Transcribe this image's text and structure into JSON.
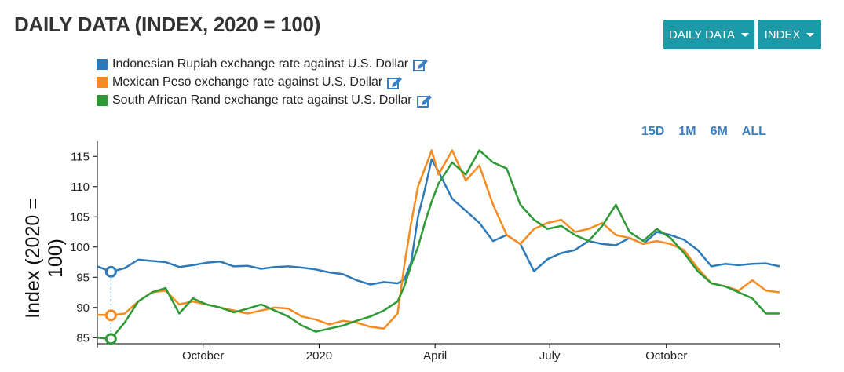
{
  "title": "DAILY DATA (INDEX, 2020 = 100)",
  "buttons": {
    "frequency": "DAILY DATA",
    "transform": "INDEX"
  },
  "range_buttons": [
    "15D",
    "1M",
    "6M",
    "ALL"
  ],
  "colors": {
    "idr": "#2e7ab8",
    "mxn": "#f68b1f",
    "zar": "#2e9a35"
  },
  "chart_data": {
    "type": "line",
    "title": "DAILY DATA (INDEX, 2020 = 100)",
    "ylabel": "Index (2020 = 100)",
    "xlabel": "",
    "ylim": [
      84,
      117.5
    ],
    "yticks": [
      85,
      90,
      95,
      100,
      105,
      110,
      115
    ],
    "xticks": [
      {
        "label": "October",
        "t": 0.155
      },
      {
        "label": "2020",
        "t": 0.325
      },
      {
        "label": "April",
        "t": 0.495
      },
      {
        "label": "July",
        "t": 0.663
      },
      {
        "label": "October",
        "t": 0.834
      }
    ],
    "x": [
      0.0,
      0.02,
      0.04,
      0.06,
      0.08,
      0.1,
      0.12,
      0.14,
      0.16,
      0.18,
      0.2,
      0.22,
      0.24,
      0.26,
      0.28,
      0.3,
      0.32,
      0.34,
      0.36,
      0.38,
      0.4,
      0.42,
      0.44,
      0.45,
      0.46,
      0.47,
      0.48,
      0.49,
      0.5,
      0.52,
      0.54,
      0.56,
      0.58,
      0.6,
      0.62,
      0.64,
      0.66,
      0.68,
      0.7,
      0.72,
      0.74,
      0.76,
      0.78,
      0.8,
      0.82,
      0.84,
      0.86,
      0.88,
      0.9,
      0.92,
      0.94,
      0.96,
      0.98,
      1.0
    ],
    "series": [
      {
        "name": "Indonesian Rupiah exchange rate against U.S. Dollar",
        "color": "#2e7ab8",
        "values": [
          96.8,
          95.9,
          96.5,
          97.9,
          97.7,
          97.5,
          96.7,
          97.0,
          97.4,
          97.6,
          96.8,
          96.9,
          96.4,
          96.7,
          96.8,
          96.6,
          96.3,
          95.8,
          95.5,
          94.5,
          93.8,
          94.2,
          94.0,
          94.6,
          97.5,
          105.0,
          109.5,
          114.5,
          112.5,
          108.0,
          106.0,
          104.0,
          101.0,
          102.0,
          100.5,
          96.0,
          98.0,
          99.0,
          99.5,
          101.0,
          100.5,
          100.3,
          101.5,
          100.5,
          102.5,
          102.0,
          101.2,
          99.5,
          96.8,
          97.2,
          97.0,
          97.2,
          97.3,
          96.8
        ]
      },
      {
        "name": "Mexican Peso exchange rate against U.S. Dollar",
        "color": "#f68b1f",
        "values": [
          88.8,
          88.7,
          89.0,
          91.0,
          92.5,
          92.8,
          90.5,
          91.0,
          90.5,
          90.0,
          89.5,
          89.0,
          89.5,
          90.0,
          89.8,
          88.5,
          88.0,
          87.2,
          87.8,
          87.5,
          86.8,
          86.5,
          89.0,
          97.0,
          104.0,
          110.0,
          113.0,
          116.0,
          112.0,
          116.0,
          111.0,
          113.5,
          107.0,
          102.0,
          100.5,
          103.0,
          104.0,
          104.5,
          102.5,
          103.0,
          104.0,
          102.0,
          101.5,
          100.5,
          101.0,
          100.5,
          99.5,
          96.5,
          94.0,
          93.5,
          92.8,
          94.5,
          92.8,
          92.5
        ]
      },
      {
        "name": "South African Rand exchange rate against U.S. Dollar",
        "color": "#2e9a35",
        "values": [
          85.0,
          84.8,
          87.5,
          91.0,
          92.5,
          93.2,
          89.0,
          91.5,
          90.5,
          90.0,
          89.2,
          89.8,
          90.5,
          89.5,
          88.5,
          87.0,
          86.0,
          86.5,
          87.0,
          87.8,
          88.5,
          89.5,
          91.0,
          93.5,
          97.0,
          100.0,
          104.0,
          107.5,
          110.5,
          114.0,
          112.0,
          116.0,
          114.0,
          113.0,
          107.0,
          104.5,
          103.0,
          103.5,
          102.0,
          101.0,
          103.5,
          107.0,
          102.5,
          101.0,
          103.0,
          101.5,
          99.0,
          96.0,
          94.0,
          93.5,
          92.5,
          91.5,
          89.0,
          89.0
        ]
      }
    ]
  }
}
